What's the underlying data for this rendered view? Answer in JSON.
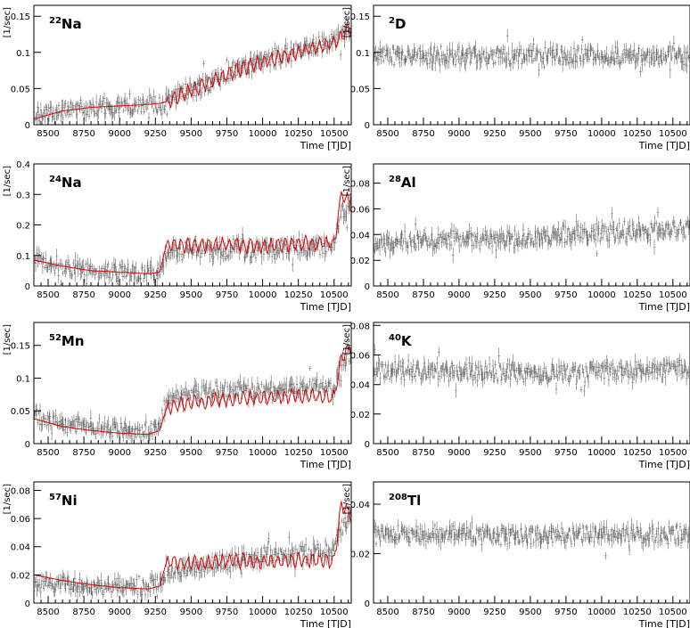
{
  "chart_data": [
    {
      "type": "scatter",
      "isotope": "Na",
      "mass": "22",
      "ylabel": "[1/sec]",
      "xlabel": "Time [TJD]",
      "xlim": [
        8400,
        10620
      ],
      "ylim": [
        0,
        0.165
      ],
      "xticks": [
        8500,
        8750,
        9000,
        9250,
        9500,
        9750,
        10000,
        10250,
        10500
      ],
      "yticks": [
        0,
        0.05,
        0.1,
        0.15
      ],
      "yticklabels": [
        "0",
        "0.05",
        "0.1",
        "0.15"
      ],
      "has_model": true,
      "grid": false,
      "data_x": [
        8400,
        8600,
        8800,
        9000,
        9200,
        9300,
        9500,
        9750,
        10000,
        10250,
        10500,
        10620
      ],
      "data_y": [
        0.01,
        0.02,
        0.024,
        0.026,
        0.028,
        0.031,
        0.048,
        0.07,
        0.088,
        0.102,
        0.116,
        0.13
      ],
      "model_x": [
        8400,
        8600,
        8800,
        9000,
        9200,
        9300,
        9500,
        9750,
        10000,
        10250,
        10500,
        10620
      ],
      "model_y": [
        0.008,
        0.019,
        0.024,
        0.026,
        0.028,
        0.03,
        0.047,
        0.069,
        0.087,
        0.1,
        0.113,
        0.135
      ]
    },
    {
      "type": "scatter",
      "isotope": "D",
      "mass": "2",
      "ylabel": "[1/sec]",
      "xlabel": "Time [TJD]",
      "xlim": [
        8400,
        10620
      ],
      "ylim": [
        0,
        0.165
      ],
      "xticks": [
        8500,
        8750,
        9000,
        9250,
        9500,
        9750,
        10000,
        10250,
        10500
      ],
      "yticks": [
        0,
        0.05,
        0.1,
        0.15
      ],
      "yticklabels": [
        "0",
        "0.05",
        "0.1",
        "0.15"
      ],
      "has_model": false,
      "grid": false,
      "data_x": [
        8400,
        10620
      ],
      "data_y": [
        0.095,
        0.095
      ]
    },
    {
      "type": "scatter",
      "isotope": "Na",
      "mass": "24",
      "ylabel": "[1/sec]",
      "xlabel": "Time [TJD]",
      "xlim": [
        8400,
        10620
      ],
      "ylim": [
        0,
        0.4
      ],
      "xticks": [
        8500,
        8750,
        9000,
        9250,
        9500,
        9750,
        10000,
        10250,
        10500
      ],
      "yticks": [
        0,
        0.1,
        0.2,
        0.3,
        0.4
      ],
      "yticklabels": [
        "0",
        "0.1",
        "0.2",
        "0.3",
        "0.4"
      ],
      "has_model": true,
      "grid": false,
      "data_x": [
        8400,
        8600,
        8800,
        9000,
        9200,
        9280,
        9330,
        9500,
        9750,
        10000,
        10250,
        10500,
        10550,
        10620
      ],
      "data_y": [
        0.085,
        0.065,
        0.05,
        0.045,
        0.04,
        0.045,
        0.11,
        0.115,
        0.12,
        0.12,
        0.125,
        0.13,
        0.25,
        0.25
      ],
      "model_x": [
        8400,
        8600,
        8800,
        9000,
        9200,
        9280,
        9330,
        9500,
        9750,
        10000,
        10250,
        10500,
        10550,
        10620
      ],
      "model_y": [
        0.085,
        0.065,
        0.05,
        0.045,
        0.04,
        0.045,
        0.14,
        0.13,
        0.135,
        0.13,
        0.14,
        0.14,
        0.3,
        0.27
      ]
    },
    {
      "type": "scatter",
      "isotope": "Al",
      "mass": "28",
      "ylabel": "[1/sec]",
      "xlabel": "Time [TJD]",
      "xlim": [
        8400,
        10620
      ],
      "ylim": [
        0,
        0.095
      ],
      "xticks": [
        8500,
        8750,
        9000,
        9250,
        9500,
        9750,
        10000,
        10250,
        10500
      ],
      "yticks": [
        0,
        0.02,
        0.04,
        0.06,
        0.08
      ],
      "yticklabels": [
        "0",
        "0.02",
        "0.04",
        "0.06",
        "0.08"
      ],
      "has_model": false,
      "grid": false,
      "data_x": [
        8400,
        9500,
        10620
      ],
      "data_y": [
        0.033,
        0.038,
        0.045
      ]
    },
    {
      "type": "scatter",
      "isotope": "Mn",
      "mass": "52",
      "ylabel": "[1/sec]",
      "xlabel": "Time [TJD]",
      "xlim": [
        8400,
        10620
      ],
      "ylim": [
        0,
        0.185
      ],
      "xticks": [
        8500,
        8750,
        9000,
        9250,
        9500,
        9750,
        10000,
        10250,
        10500
      ],
      "yticks": [
        0,
        0.05,
        0.1,
        0.15
      ],
      "yticklabels": [
        "0",
        "0.05",
        "0.1",
        "0.15"
      ],
      "has_model": true,
      "grid": false,
      "data_x": [
        8400,
        8600,
        8800,
        9000,
        9200,
        9280,
        9330,
        9500,
        9750,
        10000,
        10250,
        10500,
        10550,
        10620
      ],
      "data_y": [
        0.04,
        0.03,
        0.025,
        0.02,
        0.018,
        0.025,
        0.07,
        0.075,
        0.08,
        0.08,
        0.085,
        0.085,
        0.12,
        0.14
      ],
      "model_x": [
        8400,
        8600,
        8800,
        9000,
        9200,
        9280,
        9330,
        9500,
        9750,
        10000,
        10250,
        10500,
        10550,
        10620
      ],
      "model_y": [
        0.038,
        0.026,
        0.02,
        0.016,
        0.014,
        0.02,
        0.055,
        0.062,
        0.068,
        0.07,
        0.072,
        0.07,
        0.13,
        0.15
      ]
    },
    {
      "type": "scatter",
      "isotope": "K",
      "mass": "40",
      "ylabel": "[1/sec]",
      "xlabel": "Time [TJD]",
      "xlim": [
        8400,
        10620
      ],
      "ylim": [
        0,
        0.082
      ],
      "xticks": [
        8500,
        8750,
        9000,
        9250,
        9500,
        9750,
        10000,
        10250,
        10500
      ],
      "yticks": [
        0,
        0.02,
        0.04,
        0.06,
        0.08
      ],
      "yticklabels": [
        "0",
        "0.02",
        "0.04",
        "0.06",
        "0.08"
      ],
      "has_model": false,
      "grid": false,
      "data_x": [
        8400,
        9500,
        10620
      ],
      "data_y": [
        0.05,
        0.048,
        0.05
      ]
    },
    {
      "type": "scatter",
      "isotope": "Ni",
      "mass": "57",
      "ylabel": "[1/sec]",
      "xlabel": "Time [TJD]",
      "xlim": [
        8400,
        10620
      ],
      "ylim": [
        0,
        0.086
      ],
      "xticks": [
        8500,
        8750,
        9000,
        9250,
        9500,
        9750,
        10000,
        10250,
        10500
      ],
      "yticks": [
        0,
        0.02,
        0.04,
        0.06,
        0.08
      ],
      "yticklabels": [
        "0",
        "0.02",
        "0.04",
        "0.06",
        "0.08"
      ],
      "has_model": true,
      "grid": false,
      "data_x": [
        8400,
        8600,
        8800,
        9000,
        9200,
        9280,
        9330,
        9500,
        9750,
        10000,
        10250,
        10500,
        10550,
        10620
      ],
      "data_y": [
        0.014,
        0.013,
        0.012,
        0.011,
        0.012,
        0.014,
        0.022,
        0.025,
        0.029,
        0.032,
        0.035,
        0.038,
        0.055,
        0.06
      ],
      "model_x": [
        8400,
        8600,
        8800,
        9000,
        9200,
        9280,
        9330,
        9500,
        9750,
        10000,
        10250,
        10500,
        10550,
        10620
      ],
      "model_y": [
        0.02,
        0.016,
        0.013,
        0.011,
        0.01,
        0.012,
        0.03,
        0.028,
        0.03,
        0.029,
        0.031,
        0.03,
        0.07,
        0.062
      ]
    },
    {
      "type": "scatter",
      "isotope": "Tl",
      "mass": "208",
      "ylabel": "[1/sec]",
      "xlabel": "Time [TJD]",
      "xlim": [
        8400,
        10620
      ],
      "ylim": [
        0,
        0.049
      ],
      "xticks": [
        8500,
        8750,
        9000,
        9250,
        9500,
        9750,
        10000,
        10250,
        10500
      ],
      "yticks": [
        0,
        0.02,
        0.04
      ],
      "yticklabels": [
        "0",
        "0.02",
        "0.04"
      ],
      "has_model": false,
      "grid": false,
      "data_x": [
        8400,
        9500,
        10620
      ],
      "data_y": [
        0.028,
        0.027,
        0.028
      ]
    }
  ],
  "colors": {
    "data": "#666666",
    "model": "#dd0000",
    "axes": "#000000"
  }
}
